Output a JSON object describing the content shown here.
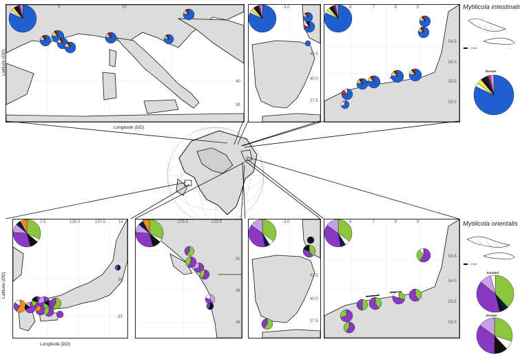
{
  "species_top": "Mytilicola intestinalis",
  "species_bottom": "Mytilicola orientalis",
  "axis": {
    "latitude_label": "Latitude (DD)",
    "longitude_label": "Longitude (DD)"
  },
  "legend_labels": {
    "europe": "Europe",
    "invaded": "Invaded",
    "scale": "1 mm"
  },
  "colors": {
    "blue": "#1f5fd0",
    "navy": "#0c1b4d",
    "green": "#8cc63f",
    "purple": "#8a39c4",
    "lavender": "#c9a0e8",
    "orange": "#f28c1a",
    "yellow": "#f2e84a",
    "red": "#d62a2a",
    "black": "#111111",
    "white": "#ffffff",
    "land": "#dcdcdc"
  },
  "panels": {
    "italy": {
      "ticks_top": [
        "5",
        "10"
      ],
      "ticks_right": [
        "40",
        "38"
      ]
    },
    "iberia_top": {
      "ticks_top": [
        "-3.0"
      ],
      "ticks_right": [
        "42.5",
        "40.0",
        "37.5"
      ]
    },
    "northsea_top": {
      "ticks_top": [
        "6",
        "7",
        "8",
        "9"
      ],
      "ticks_right": [
        "54.5",
        "54.0",
        "53.5",
        "53.0"
      ]
    },
    "japan": {
      "ticks_top": [
        "2.5",
        "135.0",
        "137.5",
        "14"
      ],
      "ticks_right": [
        "36",
        "33"
      ]
    },
    "pacific": {
      "ticks_top": [
        "-125.0",
        "-122.5"
      ],
      "ticks_right": [
        "50",
        "48",
        "46"
      ]
    },
    "iberia_bottom": {
      "ticks_top": [
        "-3.0"
      ],
      "ticks_right": [
        "42.5",
        "40.0",
        "37.5"
      ]
    },
    "northsea_bottom": {
      "ticks_top": [
        "6",
        "7",
        "8",
        "9"
      ],
      "ticks_right": [
        "54.5",
        "54.0",
        "53.5",
        "53.0"
      ]
    }
  }
}
